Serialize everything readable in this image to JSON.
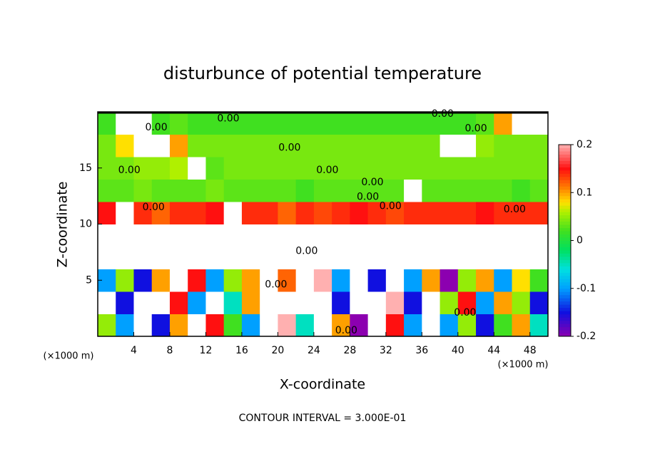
{
  "chart_data": {
    "type": "heatmap",
    "title": "disturbunce of potential temperature",
    "x_label": "X-coordinate",
    "y_label": "Z-coordinate",
    "x_unit": "(×1000 m)",
    "y_unit": "(×1000 m)",
    "footer": "CONTOUR INTERVAL = 3.000E-01",
    "xlim": [
      0,
      50
    ],
    "ylim": [
      0,
      20
    ],
    "xticks": [
      4,
      8,
      12,
      16,
      20,
      24,
      28,
      32,
      36,
      40,
      44,
      48
    ],
    "yticks": [
      5,
      10,
      15
    ],
    "colorbar_lim": [
      -0.2,
      0.2
    ],
    "colorbar_ticks": [
      0.2,
      0.1,
      0,
      -0.1,
      -0.2
    ],
    "colorscale": [
      [
        -0.2,
        "#8c00b0"
      ],
      [
        -0.15,
        "#1010e0"
      ],
      [
        -0.1,
        "#00a0ff"
      ],
      [
        -0.06,
        "#00e0e0"
      ],
      [
        -0.02,
        "#00e060"
      ],
      [
        0.02,
        "#40e020"
      ],
      [
        0.06,
        "#b0f000"
      ],
      [
        0.08,
        "#ffe000"
      ],
      [
        0.11,
        "#ff8000"
      ],
      [
        0.15,
        "#ff1010"
      ],
      [
        0.2,
        "#ffb0b0"
      ]
    ],
    "out_of_range_color": "#ffffff",
    "x": [
      1,
      3,
      5,
      7,
      9,
      11,
      13,
      15,
      17,
      19,
      21,
      23,
      25,
      27,
      29,
      31,
      33,
      35,
      37,
      39,
      41,
      43,
      45,
      47,
      49
    ],
    "y": [
      1,
      3,
      5,
      7,
      9,
      11,
      13,
      15,
      17,
      19
    ],
    "z": [
      [
        0.05,
        -0.1,
        0.3,
        -0.15,
        0.1,
        -0.3,
        0.15,
        0.02,
        -0.1,
        -0.3,
        0.2,
        -0.05,
        -0.3,
        0.1,
        -0.2,
        -0.3,
        0.15,
        -0.1,
        0.3,
        -0.1,
        0.05,
        -0.15,
        0.02,
        0.1,
        -0.05
      ],
      [
        0.3,
        -0.15,
        0.3,
        -0.3,
        0.15,
        -0.1,
        0.3,
        -0.05,
        0.1,
        -0.3,
        0.3,
        -0.3,
        0.25,
        -0.15,
        0.3,
        -0.3,
        0.2,
        -0.15,
        0.3,
        0.05,
        0.15,
        -0.1,
        0.1,
        0.05,
        -0.15
      ],
      [
        -0.1,
        0.05,
        -0.15,
        0.1,
        -0.3,
        0.15,
        -0.1,
        0.05,
        0.1,
        -0.3,
        0.12,
        -0.3,
        0.2,
        -0.1,
        0.25,
        -0.15,
        0.3,
        -0.1,
        0.1,
        -0.2,
        0.05,
        0.1,
        -0.1,
        0.08,
        0.02
      ],
      [
        0.3,
        -0.3,
        0.3,
        0.3,
        -0.3,
        0.3,
        -0.3,
        0.3,
        0.3,
        -0.3,
        0.3,
        0.3,
        -0.3,
        0.3,
        -0.3,
        0.3,
        0.3,
        -0.3,
        0.3,
        0.3,
        -0.3,
        0.3,
        0.3,
        -0.3,
        0.3
      ],
      [
        0.3,
        -0.3,
        0.3,
        -0.3,
        0.3,
        0.3,
        -0.3,
        0.3,
        0.3,
        0.3,
        -0.3,
        0.3,
        0.3,
        -0.3,
        0.3,
        -0.3,
        0.3,
        0.3,
        -0.3,
        0.3,
        0.3,
        -0.3,
        -0.3,
        0.3,
        0.3
      ],
      [
        0.15,
        -0.3,
        0.14,
        0.12,
        0.14,
        0.14,
        0.15,
        -0.3,
        0.14,
        0.14,
        0.12,
        0.14,
        0.13,
        0.14,
        0.15,
        0.14,
        0.13,
        0.14,
        0.14,
        0.14,
        0.14,
        0.15,
        0.14,
        0.14,
        0.14
      ],
      [
        0.03,
        0.03,
        0.04,
        0.03,
        0.03,
        0.03,
        0.04,
        0.03,
        0.03,
        0.03,
        0.03,
        0.02,
        0.03,
        0.03,
        0.03,
        0.03,
        0.03,
        -0.3,
        0.03,
        0.03,
        0.03,
        0.03,
        0.03,
        0.02,
        0.03
      ],
      [
        0.04,
        0.04,
        0.05,
        0.05,
        0.06,
        0.3,
        0.03,
        0.04,
        0.04,
        0.04,
        0.04,
        0.04,
        0.04,
        0.04,
        0.04,
        0.04,
        0.04,
        0.04,
        0.04,
        0.04,
        0.04,
        0.04,
        0.04,
        0.04,
        0.04
      ],
      [
        0.04,
        0.08,
        0.3,
        0.3,
        0.1,
        0.04,
        0.04,
        0.04,
        0.04,
        0.04,
        0.04,
        0.04,
        0.04,
        0.04,
        0.04,
        0.04,
        0.04,
        0.04,
        0.04,
        -0.3,
        0.3,
        0.05,
        0.04,
        0.04,
        0.04
      ],
      [
        0.02,
        0.3,
        -0.3,
        0.02,
        0.03,
        0.02,
        0.02,
        0.02,
        0.02,
        0.02,
        0.02,
        0.02,
        0.02,
        0.02,
        0.02,
        0.02,
        0.02,
        0.02,
        0.02,
        0.02,
        0.02,
        0.03,
        0.1,
        0.3,
        0.3
      ]
    ],
    "contour_labels": [
      {
        "x": 14.5,
        "y": 19.4,
        "text": "0.00"
      },
      {
        "x": 6.5,
        "y": 18.6,
        "text": "0.00"
      },
      {
        "x": 38.3,
        "y": 19.8,
        "text": "0.00"
      },
      {
        "x": 42,
        "y": 18.5,
        "text": "0.00"
      },
      {
        "x": 21.3,
        "y": 16.8,
        "text": "0.00"
      },
      {
        "x": 3.5,
        "y": 14.8,
        "text": "0.00"
      },
      {
        "x": 25.5,
        "y": 14.8,
        "text": "0.00"
      },
      {
        "x": 30.5,
        "y": 13.7,
        "text": "0.00"
      },
      {
        "x": 30,
        "y": 12.4,
        "text": "0.00"
      },
      {
        "x": 32.5,
        "y": 11.6,
        "text": "0.00"
      },
      {
        "x": 6.2,
        "y": 11.5,
        "text": "0.00"
      },
      {
        "x": 46.3,
        "y": 11.3,
        "text": "0.00"
      },
      {
        "x": 23.2,
        "y": 7.6,
        "text": "0.00"
      },
      {
        "x": 19.8,
        "y": 4.6,
        "text": "0.00"
      },
      {
        "x": 27.6,
        "y": 0.5,
        "text": "0.00"
      },
      {
        "x": 40.8,
        "y": 2.1,
        "text": "0.00"
      }
    ]
  }
}
